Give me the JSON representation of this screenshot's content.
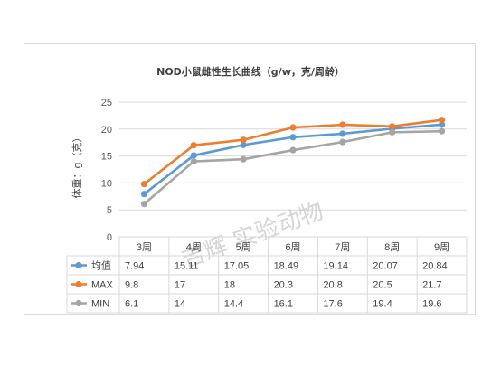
{
  "chart_data": {
    "type": "line",
    "title": "NOD小鼠雌性生长曲线（g/w，克/周龄）",
    "ylabel": "体重：g（克）",
    "xlabel": "",
    "categories": [
      "3周",
      "4周",
      "5周",
      "6周",
      "7周",
      "8周",
      "9周"
    ],
    "yticks": [
      "0",
      "5",
      "10",
      "15",
      "20",
      "25"
    ],
    "ylim": [
      0,
      25
    ],
    "grid": true,
    "legend_placement": "data-table-left",
    "series": [
      {
        "name": "均值",
        "color": "#5b9bd5",
        "values": [
          7.94,
          15.11,
          17.05,
          18.49,
          19.14,
          20.07,
          20.84
        ],
        "labels": [
          "7.94",
          "15.11",
          "17.05",
          "18.49",
          "19.14",
          "20.07",
          "20.84"
        ]
      },
      {
        "name": "MAX",
        "color": "#ed7d31",
        "values": [
          9.8,
          17,
          18,
          20.3,
          20.8,
          20.5,
          21.7
        ],
        "labels": [
          "9.8",
          "17",
          "18",
          "20.3",
          "20.8",
          "20.5",
          "21.7"
        ]
      },
      {
        "name": "MIN",
        "color": "#a5a5a5",
        "values": [
          6.1,
          14,
          14.4,
          16.1,
          17.6,
          19.4,
          19.6
        ],
        "labels": [
          "6.1",
          "14",
          "14.4",
          "16.1",
          "17.6",
          "19.4",
          "19.6"
        ]
      }
    ]
  },
  "watermark": {
    "text": "吉辉 实验动物"
  }
}
